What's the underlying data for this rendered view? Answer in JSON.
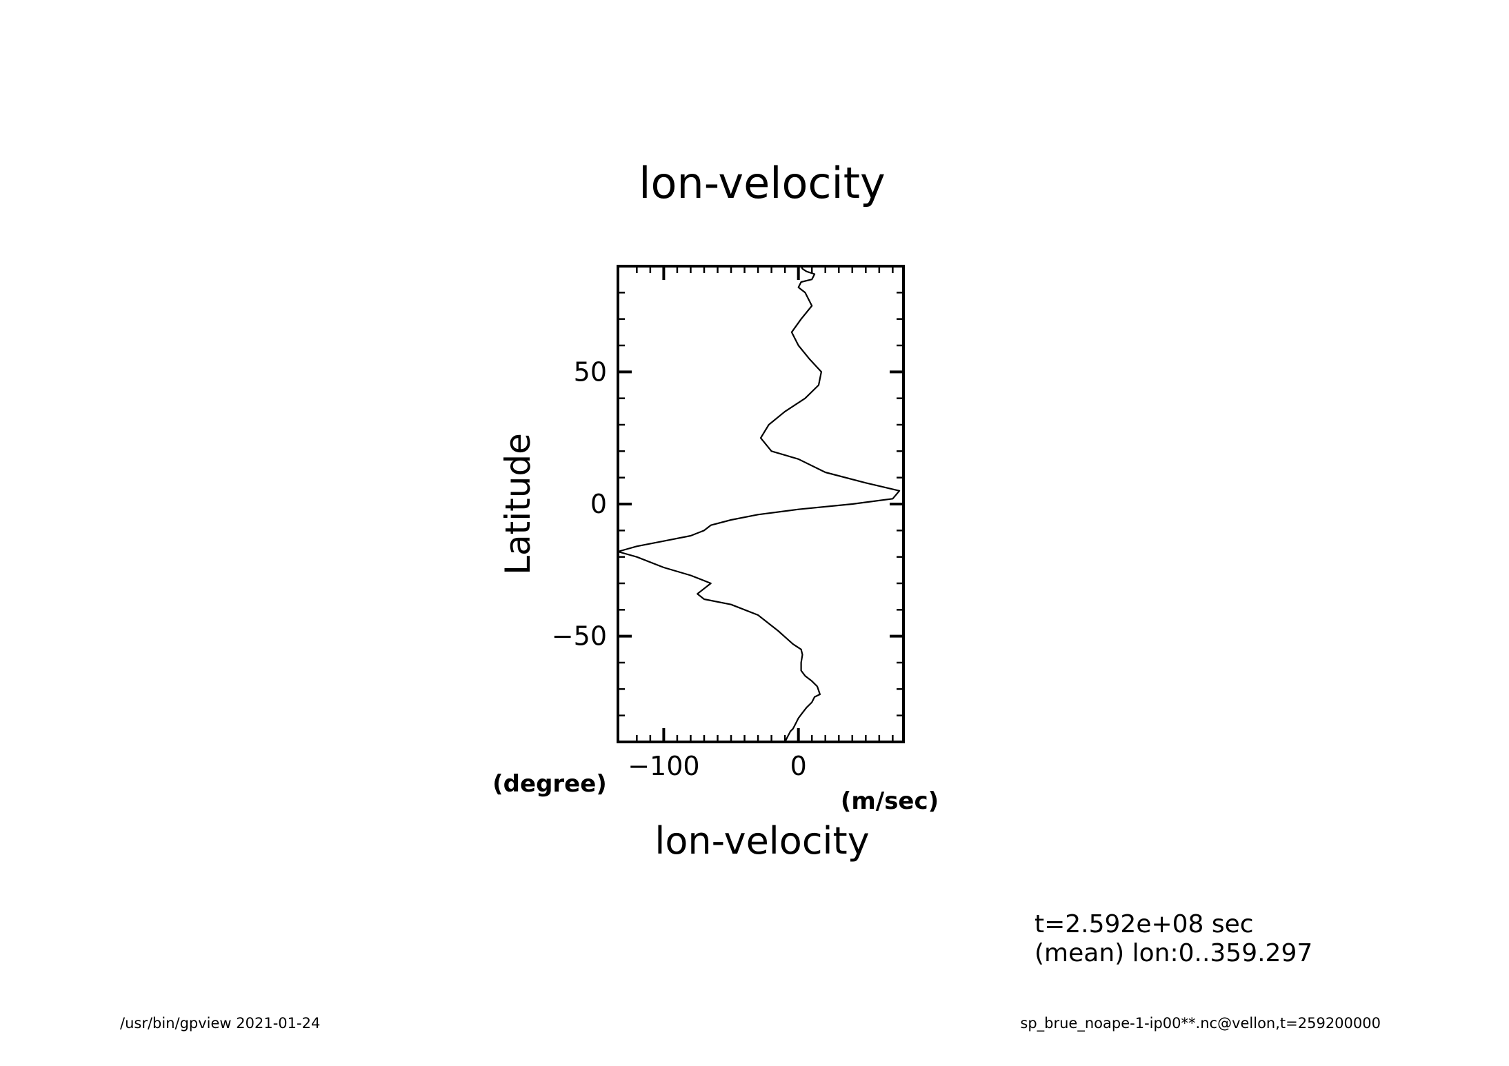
{
  "footer": {
    "left": "/usr/bin/gpview   2021-01-24",
    "right": "sp_brue_noape-1-ip00**.nc@vellon,t=259200000"
  },
  "chart_data": {
    "type": "line",
    "title": "lon-velocity",
    "xlabel": "lon-velocity",
    "xunits": "(m/sec)",
    "ylabel": "Latitude",
    "yunits": "(degree)",
    "xlim": [
      -134,
      78
    ],
    "ylim": [
      -90,
      90
    ],
    "xticks": [
      -100,
      0
    ],
    "xtick_labels": [
      "-100",
      "0"
    ],
    "yticks": [
      -50,
      0,
      50
    ],
    "ytick_labels": [
      "-50",
      "0",
      "50"
    ],
    "grid": false,
    "annotations": [
      "t=2.592e+08 sec",
      "(mean) lon:0..359.297"
    ],
    "series": [
      {
        "x": [
          -10,
          -8,
          -6,
          -4,
          -2,
          0,
          3,
          6,
          10,
          12,
          16,
          14,
          10,
          5,
          2,
          2,
          3,
          2,
          -4,
          -15,
          -30,
          -50,
          -70,
          -75,
          -65,
          -80,
          -100,
          -120,
          -134,
          -120,
          -100,
          -80,
          -70,
          -65,
          -50,
          -30,
          0,
          40,
          70,
          75,
          50,
          20,
          0,
          -20,
          -28,
          -22,
          -10,
          5,
          15,
          17,
          8,
          0,
          -5,
          2,
          10,
          5,
          0,
          2,
          10,
          12,
          6,
          3,
          2,
          6,
          12,
          10,
          8,
          5,
          3,
          2
        ],
        "y": [
          -90,
          -88,
          -86,
          -85,
          -83,
          -81,
          -79,
          -77,
          -75,
          -73,
          -72,
          -69,
          -67,
          -65,
          -63,
          -60,
          -57,
          -55,
          -53,
          -48,
          -42,
          -38,
          -36,
          -34,
          -30,
          -27,
          -24,
          -20,
          -18,
          -16,
          -14,
          -12,
          -10,
          -8,
          -6,
          -4,
          -2,
          0,
          2,
          5,
          8,
          12,
          17,
          20,
          25,
          30,
          35,
          40,
          45,
          50,
          55,
          60,
          65,
          70,
          75,
          80,
          82,
          84,
          85,
          87,
          88,
          89,
          90,
          90,
          90,
          90,
          90,
          90,
          90,
          90
        ]
      }
    ]
  }
}
